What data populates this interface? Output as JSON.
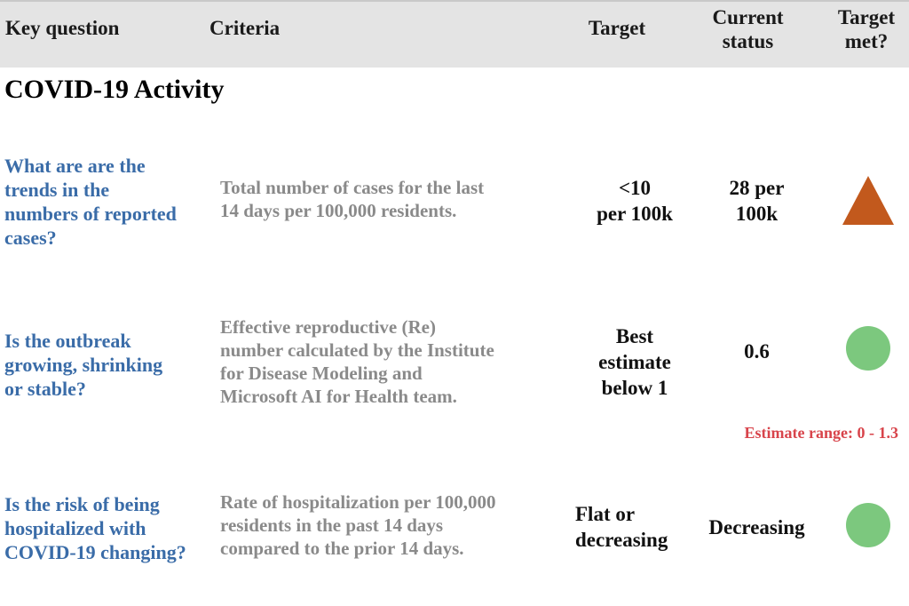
{
  "title": {
    "section": "COVID-19 Activity"
  },
  "header": {
    "key_question": "Key question",
    "criteria": "Criteria",
    "target": "Target",
    "current_status": "Current\nstatus",
    "target_met": "Target\nmet?"
  },
  "rows": [
    {
      "question": "What are are the\ntrends in the\nnumbers of reported\ncases?",
      "criteria": "Total number of cases for the last\n14 days per 100,000 residents.",
      "target": "<10\nper 100k",
      "status": "28 per\n100k",
      "indicator": {
        "icon": "triangle-up",
        "color": "#c2591d"
      }
    },
    {
      "question": "Is the outbreak\ngrowing, shrinking\nor stable?",
      "criteria": "Effective reproductive (Re)\nnumber calculated by the Institute\nfor Disease Modeling and\nMicrosoft AI for Health team.",
      "target": "Best\nestimate\nbelow 1",
      "status": "0.6",
      "indicator": {
        "icon": "circle",
        "color": "#7cc87e"
      },
      "note": "Estimate range: 0 - 1.3"
    },
    {
      "question": "Is the risk of being\nhospitalized with\nCOVID-19 changing?",
      "criteria": "Rate of hospitalization per 100,000\nresidents in the past 14 days\ncompared to the prior 14 days.",
      "target": "Flat or\ndecreasing",
      "status": "Decreasing",
      "indicator": {
        "icon": "circle",
        "color": "#7cc87e"
      }
    }
  ],
  "colors": {
    "header_bg": "#e4e4e4",
    "question_blue": "#3a6ca8",
    "criteria_gray": "#8a8a8a",
    "alert_orange": "#c2591d",
    "ok_green": "#7cc87e",
    "note_red": "#d8444b"
  }
}
